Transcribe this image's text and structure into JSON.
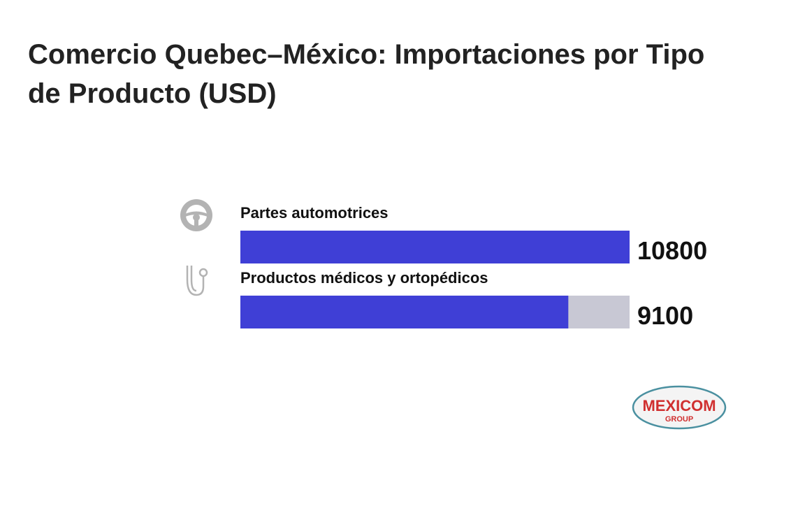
{
  "chart_data": {
    "type": "bar",
    "orientation": "horizontal",
    "title": "Comercio Quebec–México: Importaciones por Tipo de Producto (USD)",
    "categories": [
      "Partes automotrices",
      "Productos médicos y ortopédicos"
    ],
    "values": [
      10800,
      9100
    ],
    "color": "#3f3fd6",
    "track_color": "#c8c8d4"
  },
  "logo": {
    "name": "MEXICOM",
    "subtitle": "GROUP"
  }
}
